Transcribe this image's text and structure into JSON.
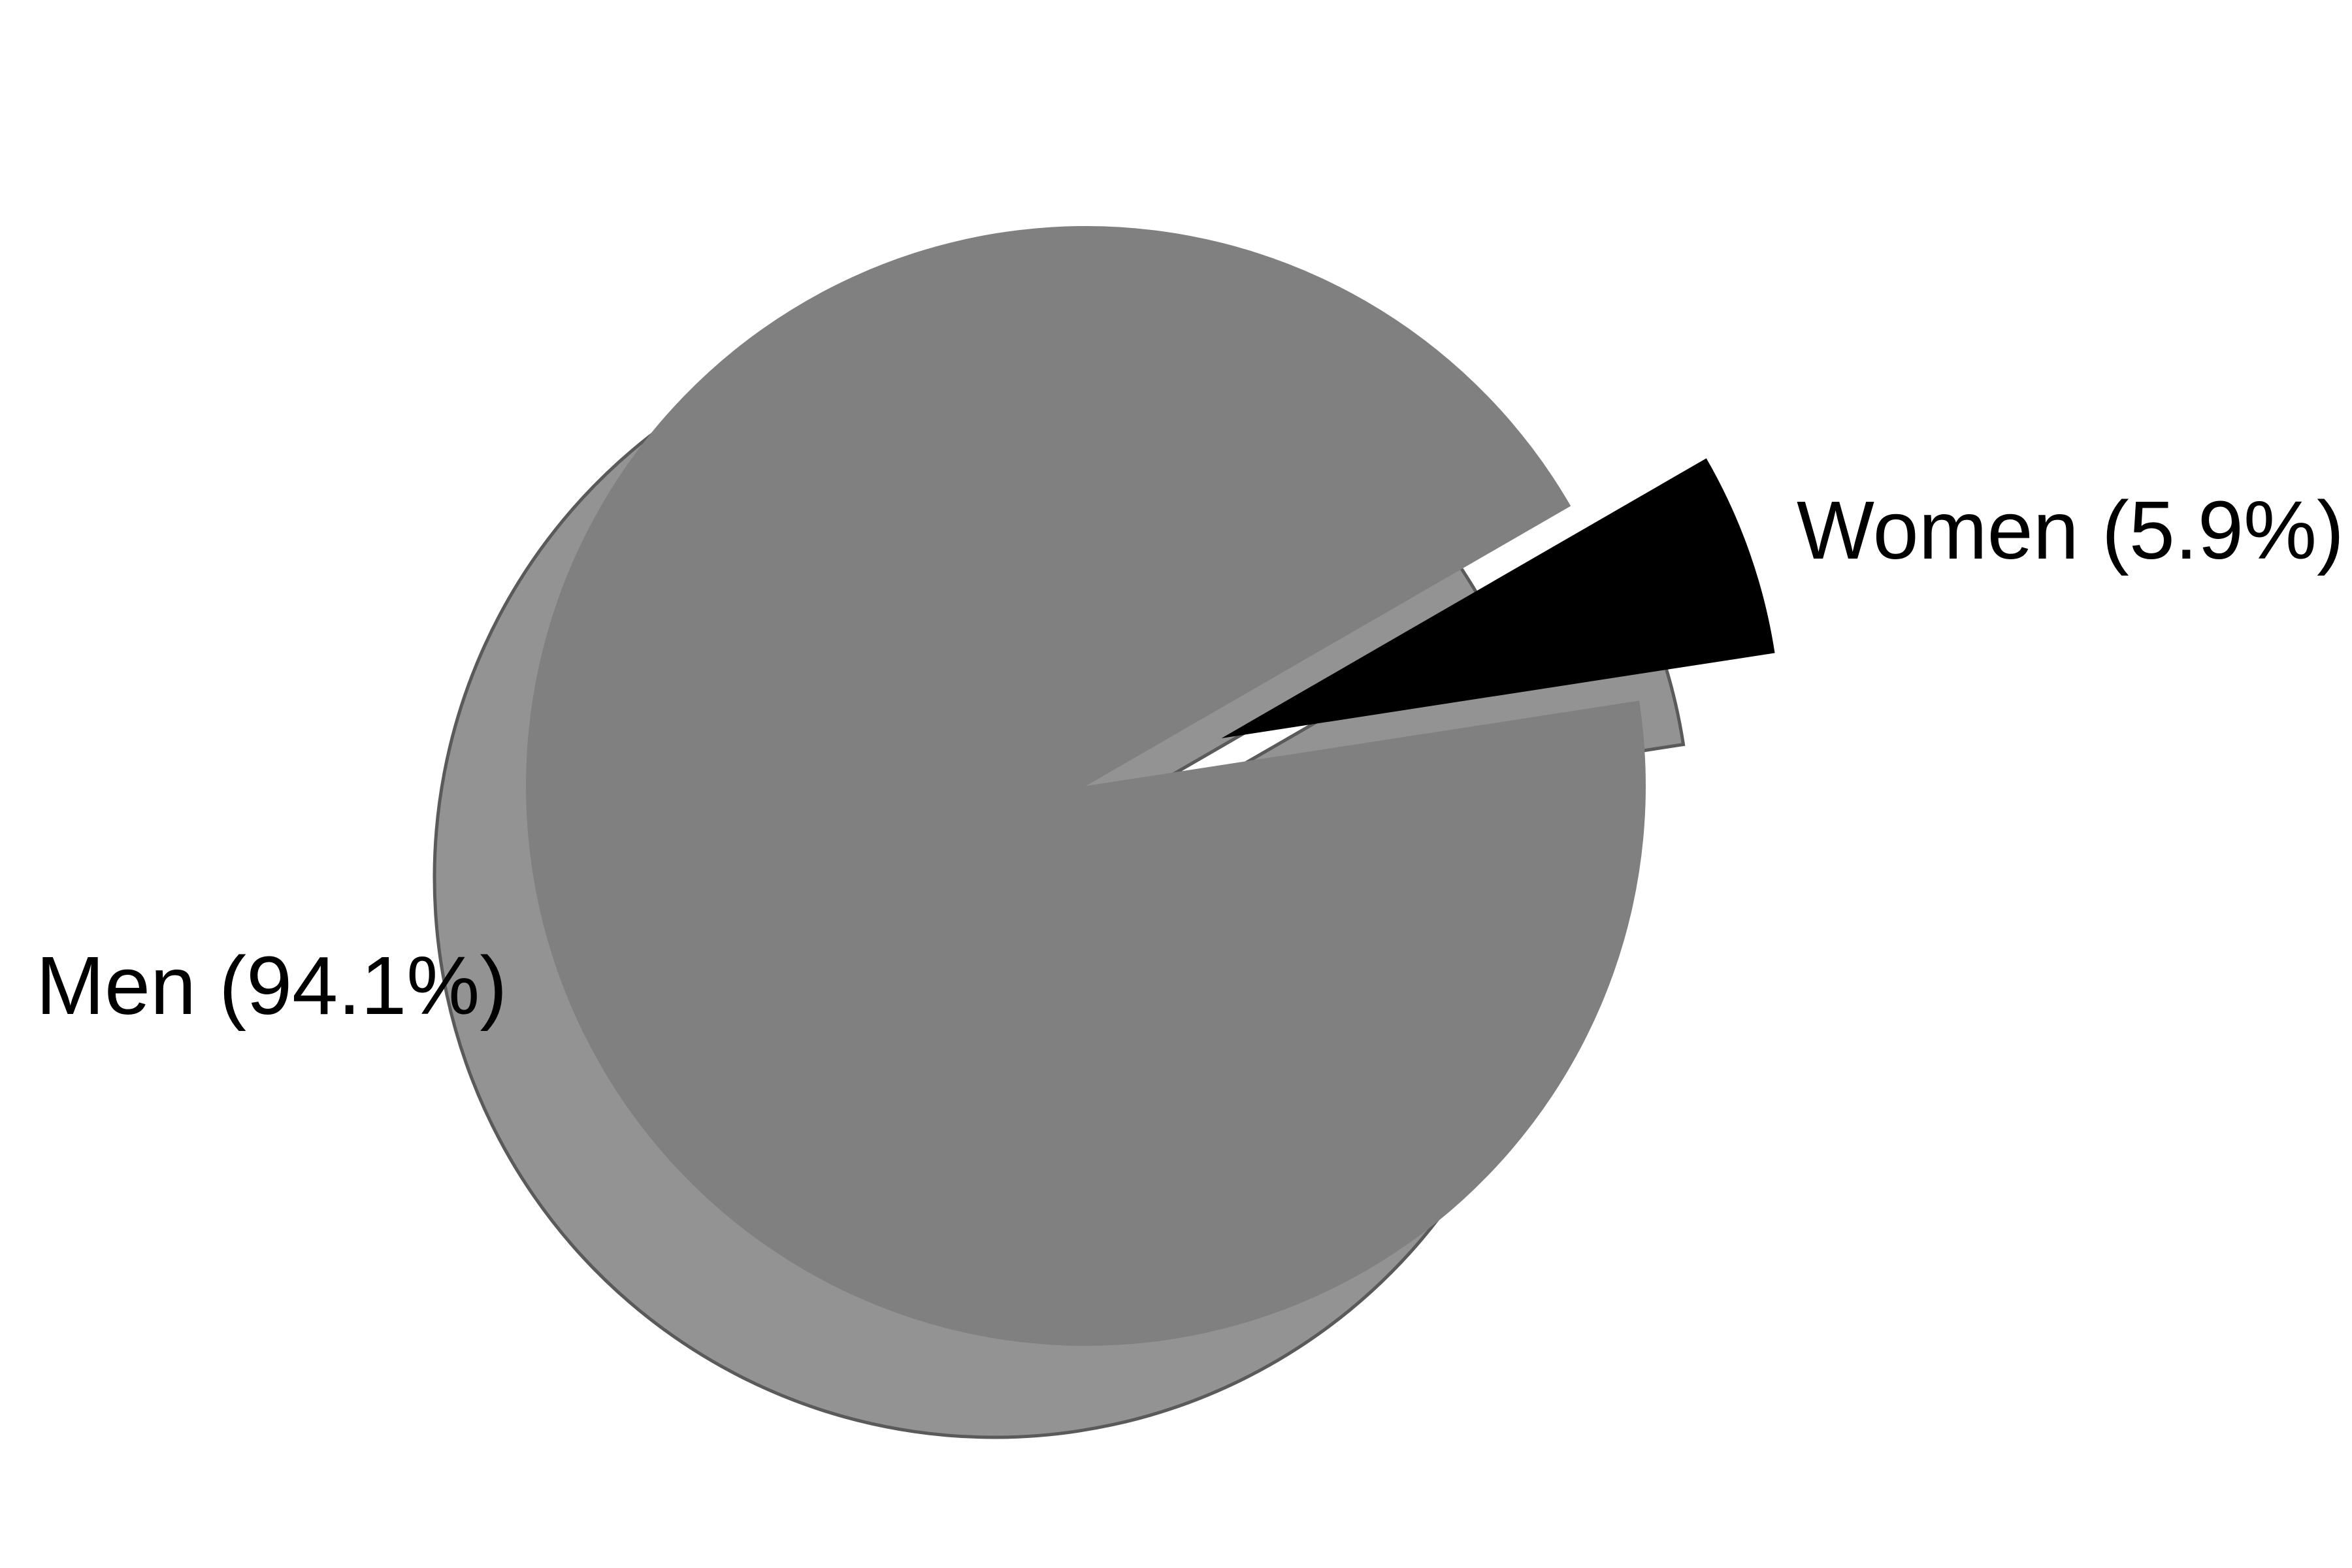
{
  "chart_data": {
    "type": "pie",
    "title": "",
    "slices": [
      {
        "name": "Men",
        "label": "Men (94.1%)",
        "value": 94.1,
        "color": "#808080",
        "exploded": false
      },
      {
        "name": "Women",
        "label": "Women (5.9%)",
        "value": 5.9,
        "color": "#000000",
        "exploded": true
      }
    ],
    "start_angle_deg": 30,
    "direction": "counterclockwise",
    "shadow": true,
    "shadow_color": "#939393",
    "legend": "none"
  }
}
